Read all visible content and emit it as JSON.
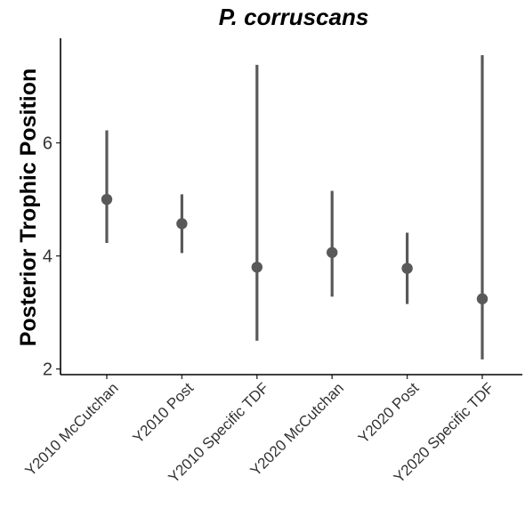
{
  "chart_data": {
    "type": "errorbar",
    "title": "P. corruscans",
    "xlabel": "",
    "ylabel": "Posterior Trophic Position",
    "categories": [
      "Y2010 McCutchan",
      "Y2010 Post",
      "Y2010 Specific TDF",
      "Y2020 McCutchan",
      "Y2020 Post",
      "Y2020 Specific TDF"
    ],
    "values": [
      5.0,
      4.57,
      3.8,
      4.06,
      3.78,
      3.24
    ],
    "lower": [
      4.23,
      4.05,
      2.5,
      3.28,
      3.15,
      2.17
    ],
    "upper": [
      6.22,
      5.09,
      7.38,
      5.15,
      4.41,
      7.55
    ],
    "yticks": [
      2,
      4,
      6
    ],
    "ylim": [
      1.9,
      7.85
    ],
    "grid": false,
    "legend": "none",
    "colors": {
      "point": "#595959",
      "errorbar": "#595959",
      "axis": "#000000"
    }
  }
}
